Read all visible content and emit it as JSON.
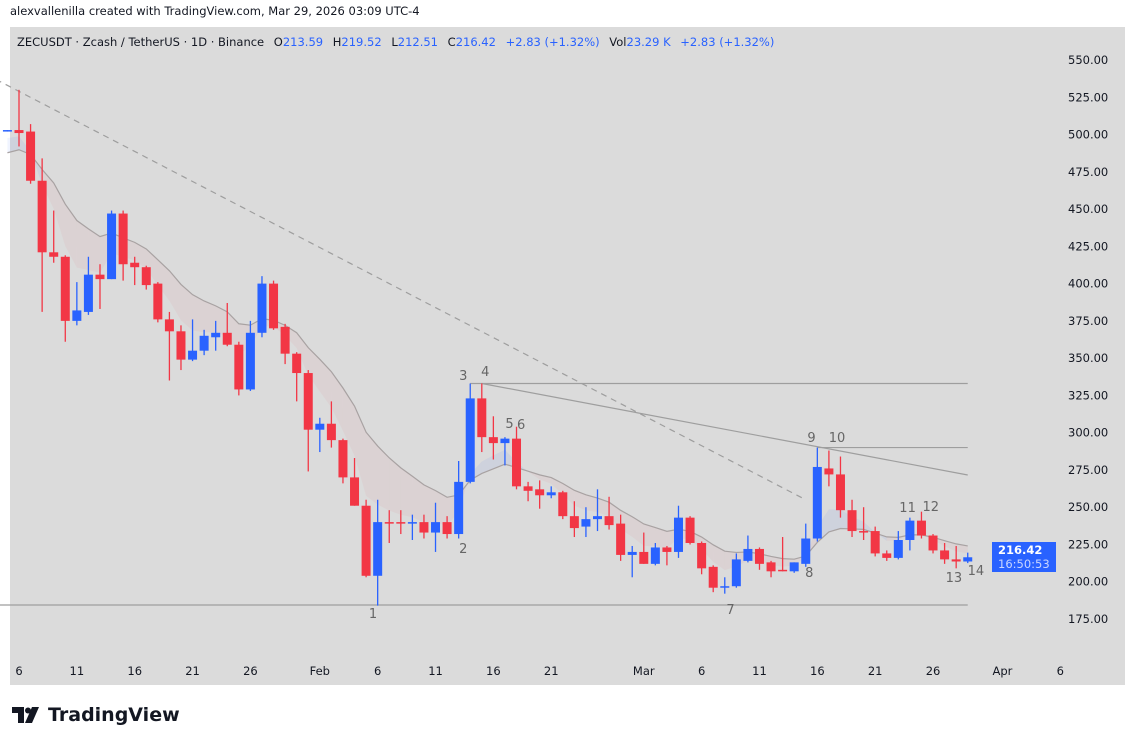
{
  "credit": "alexvallenilla created with TradingView.com, Mar 29, 2026 03:09 UTC-4",
  "legend": {
    "symbol": "ZECUSDT · Zcash / TetherUS · 1D · Binance",
    "o_label": "O",
    "o": "213.59",
    "h_label": "H",
    "h": "219.52",
    "l_label": "L",
    "l": "212.51",
    "c_label": "C",
    "c": "216.42",
    "change": "+2.83 (+1.32%)",
    "vol_label": "Vol",
    "vol": "23.29 K",
    "vol_change": "+2.83 (+1.32%)"
  },
  "price_badge": {
    "price": "216.42",
    "countdown": "16:50:53"
  },
  "footer": {
    "brand": "TradingView"
  },
  "colors": {
    "up": "#2962ff",
    "down": "#f23645",
    "background": "#dbdbdb",
    "drawings": "#9e9e9e"
  },
  "chart_data": {
    "type": "candlestick",
    "symbol": "ZECUSDT",
    "interval": "1D",
    "y_ticks": [
      "175.00",
      "200.00",
      "225.00",
      "250.00",
      "275.00",
      "300.00",
      "325.00",
      "350.00",
      "375.00",
      "400.00",
      "425.00",
      "450.00",
      "475.00",
      "500.00",
      "525.00",
      "550.00"
    ],
    "x_ticks": [
      {
        "label": "6",
        "date": "2026-01-06"
      },
      {
        "label": "11",
        "date": "2026-01-11"
      },
      {
        "label": "16",
        "date": "2026-01-16"
      },
      {
        "label": "21",
        "date": "2026-01-21"
      },
      {
        "label": "26",
        "date": "2026-01-26"
      },
      {
        "label": "Feb",
        "date": "2026-02-01"
      },
      {
        "label": "6",
        "date": "2026-02-06"
      },
      {
        "label": "11",
        "date": "2026-02-11"
      },
      {
        "label": "16",
        "date": "2026-02-16"
      },
      {
        "label": "21",
        "date": "2026-02-21"
      },
      {
        "label": "Mar",
        "date": "2026-03-01"
      },
      {
        "label": "6",
        "date": "2026-03-06"
      },
      {
        "label": "11",
        "date": "2026-03-11"
      },
      {
        "label": "16",
        "date": "2026-03-16"
      },
      {
        "label": "21",
        "date": "2026-03-21"
      },
      {
        "label": "26",
        "date": "2026-03-26"
      },
      {
        "label": "Apr",
        "date": "2026-04-01"
      },
      {
        "label": "6",
        "date": "2026-04-06"
      }
    ],
    "start_date": "2026-01-05",
    "ohlc": [
      [
        502,
        503,
        502,
        503
      ],
      [
        503,
        530,
        492,
        501
      ],
      [
        502,
        507,
        467,
        469
      ],
      [
        469,
        484,
        381,
        421
      ],
      [
        421,
        449,
        414,
        418
      ],
      [
        418,
        419,
        361,
        375
      ],
      [
        375,
        401,
        372,
        382
      ],
      [
        381,
        418,
        379,
        406
      ],
      [
        406,
        413,
        383,
        403
      ],
      [
        403,
        449,
        403,
        447
      ],
      [
        447,
        449,
        402,
        413
      ],
      [
        414,
        418,
        399,
        411
      ],
      [
        411,
        412,
        396,
        399
      ],
      [
        400,
        401,
        374,
        376
      ],
      [
        376,
        381,
        335,
        368
      ],
      [
        368,
        372,
        342,
        349
      ],
      [
        349,
        376,
        348,
        355
      ],
      [
        355,
        369,
        352,
        365
      ],
      [
        364,
        375,
        355,
        367
      ],
      [
        367,
        387,
        358,
        359
      ],
      [
        359,
        361,
        325,
        329
      ],
      [
        329,
        375,
        328,
        367
      ],
      [
        367,
        405,
        364,
        400
      ],
      [
        400,
        402,
        369,
        370
      ],
      [
        371,
        373,
        346,
        353
      ],
      [
        353,
        354,
        321,
        340
      ],
      [
        340,
        342,
        274,
        302
      ],
      [
        302,
        310,
        287,
        306
      ],
      [
        306,
        321,
        290,
        295
      ],
      [
        295,
        296,
        266,
        270
      ],
      [
        270,
        283,
        251,
        251
      ],
      [
        251,
        255,
        203,
        204
      ],
      [
        204,
        255,
        184,
        240
      ],
      [
        240,
        248,
        226,
        239.5
      ],
      [
        240,
        248,
        232,
        239.5
      ],
      [
        239.5,
        245,
        228,
        240
      ],
      [
        240,
        245,
        229,
        233
      ],
      [
        233,
        253,
        220,
        240
      ],
      [
        240,
        244,
        229,
        232
      ],
      [
        232,
        281,
        229,
        267
      ],
      [
        267,
        333,
        266,
        323
      ],
      [
        323,
        333,
        287,
        297
      ],
      [
        297,
        311,
        282,
        293
      ],
      [
        293,
        297,
        278,
        296
      ],
      [
        296,
        304,
        262,
        264
      ],
      [
        264,
        267,
        254,
        261
      ],
      [
        262,
        268,
        249,
        258
      ],
      [
        258,
        264,
        256,
        260
      ],
      [
        260,
        261,
        242,
        244
      ],
      [
        244,
        254,
        230,
        236
      ],
      [
        237,
        250,
        230,
        242
      ],
      [
        242,
        262,
        234,
        244
      ],
      [
        244,
        257,
        235,
        238
      ],
      [
        239,
        245,
        214,
        218
      ],
      [
        218,
        224,
        203,
        220
      ],
      [
        220,
        233,
        212,
        212
      ],
      [
        212,
        226,
        211,
        223
      ],
      [
        223,
        224,
        211,
        220
      ],
      [
        220,
        251,
        216,
        243
      ],
      [
        243,
        244,
        225,
        226
      ],
      [
        226,
        227,
        205,
        209
      ],
      [
        210,
        211,
        193,
        196
      ],
      [
        196,
        203,
        192,
        197
      ],
      [
        197,
        219,
        196,
        215
      ],
      [
        214,
        231,
        213,
        222
      ],
      [
        222,
        223,
        208,
        212
      ],
      [
        213,
        214,
        203,
        207
      ],
      [
        208,
        230,
        207,
        207.5
      ],
      [
        207,
        213,
        206,
        213
      ],
      [
        212,
        239,
        210,
        229
      ],
      [
        229,
        290,
        227,
        277
      ],
      [
        276,
        288,
        264,
        272
      ],
      [
        272,
        284,
        243,
        248
      ],
      [
        248,
        255,
        230,
        234
      ],
      [
        234,
        250,
        228,
        233.5
      ],
      [
        234,
        237,
        217,
        219
      ],
      [
        219,
        221,
        214,
        216
      ],
      [
        216,
        234,
        215,
        228
      ],
      [
        228,
        243,
        221,
        241
      ],
      [
        241,
        247,
        229,
        231
      ],
      [
        231,
        232,
        219,
        221
      ],
      [
        221,
        226,
        212,
        215
      ],
      [
        215,
        224,
        209,
        213.59
      ],
      [
        213.59,
        219.52,
        212.51,
        216.42
      ]
    ],
    "drawings": [
      {
        "kind": "horizontal",
        "price": 184.4,
        "from": "2026-01-04",
        "to": "2026-03-29"
      },
      {
        "kind": "horizontal",
        "price": 333,
        "from": "2026-02-14",
        "to": "2026-03-29"
      },
      {
        "kind": "horizontal",
        "price": 290,
        "from": "2026-03-16",
        "to": "2026-03-29"
      },
      {
        "kind": "trend",
        "from": "2026-02-15",
        "p1": 333,
        "to": "2026-03-29",
        "p2": 271.6
      },
      {
        "kind": "trend_dashed",
        "from": "2026-01-04",
        "p1": 537,
        "to": "2026-03-15",
        "p2": 255
      }
    ],
    "wave_labels": [
      {
        "text": "1",
        "date": "2026-02-05.6",
        "price": 175.7
      },
      {
        "text": "2",
        "date": "2026-02-13.4",
        "price": 219.3
      },
      {
        "text": "3",
        "date": "2026-02-13.4",
        "price": 335.3
      },
      {
        "text": "4",
        "date": "2026-02-15.3",
        "price": 338
      },
      {
        "text": "5",
        "date": "2026-02-17.4",
        "price": 303
      },
      {
        "text": "6",
        "date": "2026-02-18.4",
        "price": 302.5
      },
      {
        "text": "7",
        "date": "2026-03-08.5",
        "price": 178.4
      },
      {
        "text": "8",
        "date": "2026-03-15.3",
        "price": 203.2
      },
      {
        "text": "9",
        "date": "2026-03-15.5",
        "price": 293.7
      },
      {
        "text": "10",
        "date": "2026-03-17.7",
        "price": 293.7
      },
      {
        "text": "11",
        "date": "2026-03-23.8",
        "price": 246.8
      },
      {
        "text": "12",
        "date": "2026-03-25.8",
        "price": 247.5
      },
      {
        "text": "13",
        "date": "2026-03-27.8",
        "price": 199.9
      },
      {
        "text": "14",
        "date": "2026-03-29.7",
        "price": 204.5
      }
    ]
  }
}
